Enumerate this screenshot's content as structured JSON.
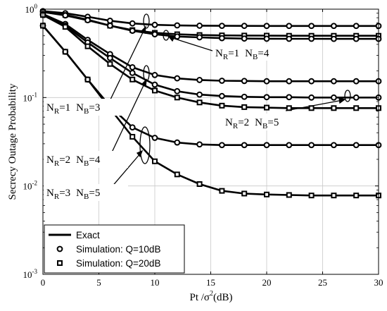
{
  "colors": {
    "line": "#000000",
    "grid": "#c8c8c8",
    "background": "#ffffff"
  },
  "chart_data": {
    "type": "line",
    "title": "",
    "xlabel": {
      "prefix": "Pt /",
      "sigma": "σ",
      "exponent": "2",
      "suffix": "(dB)"
    },
    "ylabel": "Secrecy Outage Probability",
    "xlim": [
      0,
      30
    ],
    "ylim": [
      0.001,
      1
    ],
    "y_scale": "log",
    "grid": true,
    "x_ticks": [
      "0",
      "5",
      "10",
      "15",
      "20",
      "25",
      "30"
    ],
    "y_ticks": [
      {
        "value": 1,
        "base": "10",
        "exp": "0"
      },
      {
        "value": 0.1,
        "base": "10",
        "exp": "-1"
      },
      {
        "value": 0.01,
        "base": "10",
        "exp": "-2"
      },
      {
        "value": 0.001,
        "base": "10",
        "exp": "-3"
      }
    ],
    "x": [
      0,
      2,
      4,
      6,
      8,
      10,
      12,
      14,
      16,
      18,
      20,
      22,
      24,
      26,
      28,
      30
    ],
    "series": [
      {
        "group": "NR=1 NB=4",
        "q": "Q=10dB",
        "marker": "circle",
        "values": [
          0.95,
          0.9,
          0.82,
          0.74,
          0.69,
          0.665,
          0.655,
          0.65,
          0.648,
          0.647,
          0.646,
          0.646,
          0.646,
          0.646,
          0.646,
          0.646
        ]
      },
      {
        "group": "NR=1 NB=4",
        "q": "Q=20dB",
        "marker": "square",
        "values": [
          0.93,
          0.86,
          0.76,
          0.65,
          0.58,
          0.54,
          0.52,
          0.51,
          0.505,
          0.503,
          0.502,
          0.5,
          0.5,
          0.5,
          0.5,
          0.5
        ]
      },
      {
        "group": "NR=1 NB=3",
        "q": "Q=10dB",
        "marker": "circle",
        "values": [
          0.93,
          0.85,
          0.75,
          0.65,
          0.57,
          0.52,
          0.49,
          0.48,
          0.47,
          0.465,
          0.463,
          0.462,
          0.462,
          0.461,
          0.461,
          0.461
        ]
      },
      {
        "group": "NR=2 NB=5",
        "q": "Q=10dB",
        "marker": "circle",
        "values": [
          0.88,
          0.68,
          0.45,
          0.31,
          0.22,
          0.18,
          0.165,
          0.158,
          0.155,
          0.154,
          0.153,
          0.153,
          0.153,
          0.153,
          0.153,
          0.153
        ]
      },
      {
        "group": "NR=2 NB=4",
        "q": "Q=10dB",
        "marker": "circle",
        "values": [
          0.86,
          0.65,
          0.42,
          0.28,
          0.19,
          0.14,
          0.118,
          0.108,
          0.104,
          0.102,
          0.101,
          0.101,
          0.1,
          0.1,
          0.1,
          0.1
        ]
      },
      {
        "group": "NR=2 NB=5",
        "q": "Q=20dB",
        "marker": "square",
        "values": [
          0.86,
          0.63,
          0.38,
          0.24,
          0.16,
          0.12,
          0.1,
          0.088,
          0.081,
          0.078,
          0.077,
          0.076,
          0.076,
          0.076,
          0.076,
          0.076
        ]
      },
      {
        "group": "NR=3 NB=5",
        "q": "Q=10dB",
        "marker": "circle",
        "values": [
          0.65,
          0.33,
          0.16,
          0.08,
          0.046,
          0.035,
          0.031,
          0.0295,
          0.029,
          0.029,
          0.029,
          0.029,
          0.029,
          0.029,
          0.029,
          0.029
        ]
      },
      {
        "group": "NR=3 NB=5",
        "q": "Q=20dB",
        "marker": "square",
        "values": [
          0.65,
          0.33,
          0.16,
          0.075,
          0.036,
          0.019,
          0.0135,
          0.0105,
          0.0088,
          0.0082,
          0.008,
          0.0079,
          0.0078,
          0.0078,
          0.0078,
          0.0078
        ]
      }
    ],
    "legend": {
      "placement": "bottom-left",
      "entries": [
        {
          "kind": "line",
          "label": "Exact"
        },
        {
          "kind": "circle",
          "label": "Simulation: Q=10dB"
        },
        {
          "kind": "square",
          "label": "Simulation: Q=20dB"
        }
      ]
    },
    "annotations": [
      {
        "id": "nr1nb4",
        "R": "1",
        "B": "4"
      },
      {
        "id": "nr1nb3",
        "R": "1",
        "B": "3"
      },
      {
        "id": "nr2nb5",
        "R": "2",
        "B": "5"
      },
      {
        "id": "nr2nb4",
        "R": "2",
        "B": "4"
      },
      {
        "id": "nr3nb5",
        "R": "3",
        "B": "5"
      }
    ]
  }
}
